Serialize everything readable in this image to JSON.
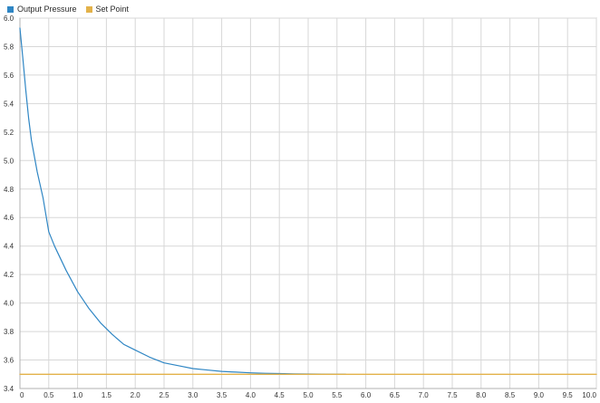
{
  "colors": {
    "background": "#ffffff",
    "grid": "#d7d7d7",
    "axis": "#b0b0b0",
    "output_pressure": "#2f86c4",
    "set_point": "#e3b24a"
  },
  "legend": {
    "items": [
      {
        "label": "Output Pressure",
        "color": "#2f86c4"
      },
      {
        "label": "Set Point",
        "color": "#e3b24a"
      }
    ]
  },
  "chart_data": {
    "type": "line",
    "title": "",
    "xlabel": "",
    "ylabel": "",
    "xlim": [
      0,
      10
    ],
    "ylim": [
      3.4,
      6.0
    ],
    "grid": true,
    "legend_position": "top-left",
    "x_ticks": [
      "0",
      "0.5",
      "1.0",
      "1.5",
      "2.0",
      "2.5",
      "3.0",
      "3.5",
      "4.0",
      "4.5",
      "5.0",
      "5.5",
      "6.0",
      "6.5",
      "7.0",
      "7.5",
      "8.0",
      "8.5",
      "9.0",
      "9.5",
      "10.0"
    ],
    "y_ticks": [
      "3.4",
      "3.6",
      "3.8",
      "4.0",
      "4.2",
      "4.4",
      "4.6",
      "4.8",
      "5.0",
      "5.2",
      "5.4",
      "5.6",
      "5.8",
      "6.0"
    ],
    "series": [
      {
        "name": "Output Pressure",
        "color": "#2f86c4",
        "x": [
          0,
          0.05,
          0.1,
          0.15,
          0.2,
          0.3,
          0.4,
          0.5,
          0.6,
          0.8,
          1.0,
          1.2,
          1.4,
          1.6,
          1.8,
          2.0,
          2.25,
          2.5,
          2.75,
          3.0,
          3.25,
          3.5,
          3.75,
          4.0,
          4.25,
          4.5,
          4.75,
          5.0,
          5.25,
          5.5,
          5.65
        ],
        "y": [
          5.93,
          5.72,
          5.5,
          5.3,
          5.14,
          4.92,
          4.74,
          4.5,
          4.4,
          4.23,
          4.08,
          3.96,
          3.86,
          3.78,
          3.71,
          3.67,
          3.62,
          3.58,
          3.56,
          3.54,
          3.53,
          3.52,
          3.515,
          3.51,
          3.507,
          3.505,
          3.503,
          3.502,
          3.501,
          3.5,
          3.5
        ]
      },
      {
        "name": "Set Point",
        "color": "#e3b24a",
        "x": [
          0,
          10
        ],
        "y": [
          3.5,
          3.5
        ]
      }
    ]
  }
}
